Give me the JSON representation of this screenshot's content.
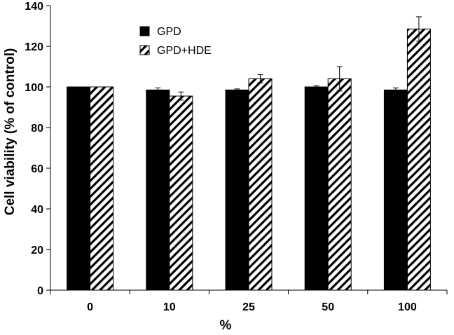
{
  "chart_data": {
    "type": "bar",
    "categories": [
      "0",
      "10",
      "25",
      "50",
      "100"
    ],
    "series": [
      {
        "name": "GPD",
        "values": [
          100,
          98.5,
          98.5,
          100,
          98.5
        ],
        "errors": [
          0,
          1,
          0.5,
          0.5,
          1
        ],
        "color": "#000000",
        "pattern": "solid"
      },
      {
        "name": "GPD+HDE",
        "values": [
          100,
          95.5,
          104,
          104,
          128.5
        ],
        "errors": [
          0,
          2,
          2,
          6,
          6
        ],
        "color": "#ffffff",
        "pattern": "diagonal-hatch"
      }
    ],
    "title": "",
    "xlabel": "%",
    "ylabel": "Cell viability (% of control)",
    "ylim": [
      0,
      140
    ],
    "yticks": [
      0,
      20,
      40,
      60,
      80,
      100,
      120,
      140
    ],
    "grid": false,
    "legend_position": "top-left"
  }
}
